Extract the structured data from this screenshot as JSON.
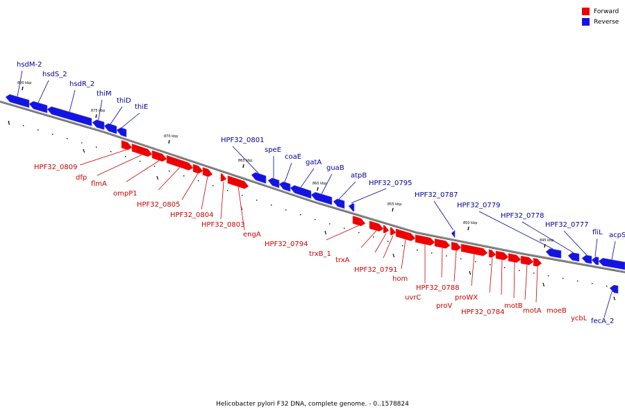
{
  "colors": {
    "forward": "#ee0000",
    "reverse": "#1414e0",
    "forward_text": "#cc0000",
    "reverse_text": "#00009a",
    "backbone": "#888888"
  },
  "legend": {
    "forward_label": "Forward",
    "reverse_label": "Reverse"
  },
  "caption": "Helicobacter pylori F32 DNA, complete genome. - 0..1578824",
  "kbp_ticks": [
    "880 kbp",
    "875 kbp",
    "870 kbp",
    "865 kbp",
    "860 kbp",
    "855 kbp",
    "850 kbp",
    "845 kbp"
  ],
  "reverse_genes": [
    "hsdM-2",
    "hsdS_2",
    "hsdR_2",
    "thiM",
    "thiD",
    "thiE",
    "HPF32_0801",
    "speE",
    "coaE",
    "gatA",
    "guaB",
    "atpB",
    "HPF32_0795",
    "HPF32_0787",
    "HPF32_0779",
    "HPF32_0778",
    "HPF32_0777",
    "fliL",
    "acpS",
    "fecA_2"
  ],
  "forward_genes": [
    "HPF32_0809",
    "dfp",
    "flmA",
    "ompP1",
    "HPF32_0805",
    "HPF32_0804",
    "HPF32_0803",
    "engA",
    "HPF32_0794",
    "trxB_1",
    "trxA",
    "HPF32_0791",
    "hom",
    "uvrC",
    "HPF32_0788",
    "proV",
    "proWX",
    "HPF32_0784",
    "motB",
    "motA",
    "moeB",
    "ycbL"
  ]
}
